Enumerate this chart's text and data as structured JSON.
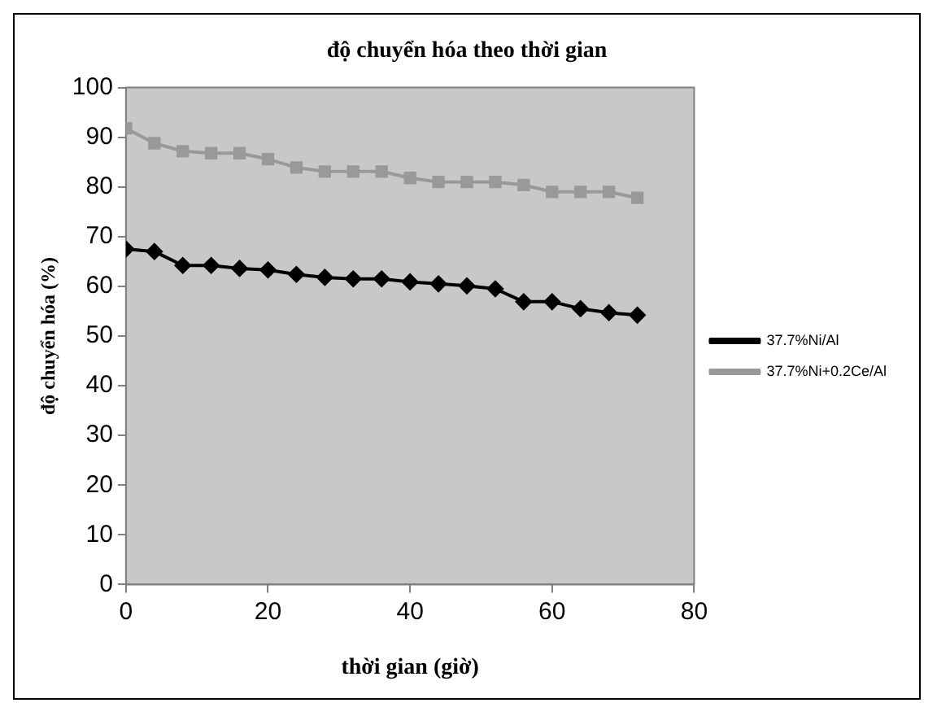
{
  "chart_data": {
    "type": "line",
    "title": "độ chuyển hóa theo thời gian",
    "xlabel": "thời gian (giờ)",
    "ylabel": "độ chuyển hóa (%)",
    "x": [
      0,
      4,
      8,
      12,
      16,
      20,
      24,
      28,
      32,
      36,
      40,
      44,
      48,
      52,
      56,
      60,
      64,
      68,
      72
    ],
    "series": [
      {
        "name": "37.7%Ni/Al",
        "color": "#000000",
        "marker": "diamond",
        "values": [
          67.5,
          67,
          64.2,
          64.2,
          63.6,
          63.3,
          62.4,
          61.8,
          61.5,
          61.5,
          60.9,
          60.5,
          60.1,
          59.5,
          56.9,
          56.9,
          55.5,
          54.7,
          54.2
        ]
      },
      {
        "name": "37.7%Ni+0.2Ce/Al",
        "color": "#999999",
        "marker": "square",
        "values": [
          91.8,
          88.8,
          87.2,
          86.8,
          86.8,
          85.6,
          83.9,
          83.1,
          83.1,
          83.1,
          81.8,
          81,
          81,
          81,
          80.4,
          79,
          79,
          79,
          77.8
        ]
      }
    ],
    "xlim": [
      0,
      80
    ],
    "xticks": [
      0,
      20,
      40,
      60,
      80
    ],
    "ylim": [
      0,
      100
    ],
    "yticks": [
      0,
      10,
      20,
      30,
      40,
      50,
      60,
      70,
      80,
      90,
      100
    ],
    "grid": false,
    "legend": "right",
    "line_style": "solid"
  }
}
